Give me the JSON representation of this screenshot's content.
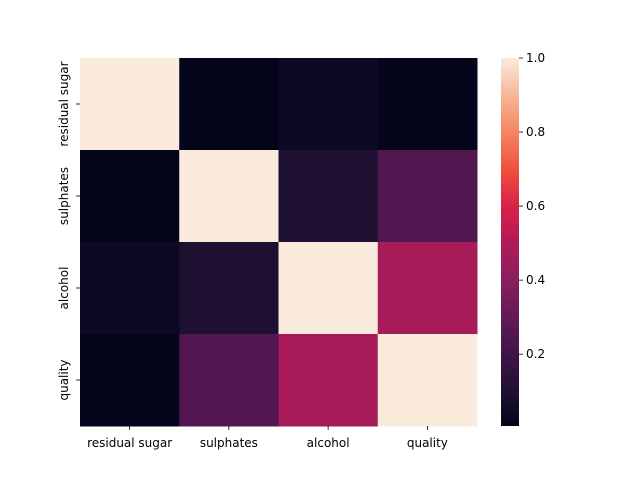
{
  "chart_data": {
    "type": "heatmap",
    "title": "",
    "xlabel": "",
    "ylabel": "",
    "categories": [
      "residual sugar",
      "sulphates",
      "alcohol",
      "quality"
    ],
    "matrix": [
      [
        1.0,
        0.006,
        0.042,
        0.014
      ],
      [
        0.006,
        1.0,
        0.094,
        0.251
      ],
      [
        0.042,
        0.094,
        1.0,
        0.476
      ],
      [
        0.014,
        0.251,
        0.476,
        1.0
      ]
    ],
    "colorbar": {
      "vmin": 0.006,
      "vmax": 1.0,
      "ticks": [
        0.2,
        0.4,
        0.6,
        0.8,
        1.0
      ],
      "tick_labels": [
        "0.2",
        "0.4",
        "0.6",
        "0.8",
        "1.0"
      ]
    },
    "colormap": "rocket",
    "grid": false,
    "legend": "colorbar-right"
  }
}
